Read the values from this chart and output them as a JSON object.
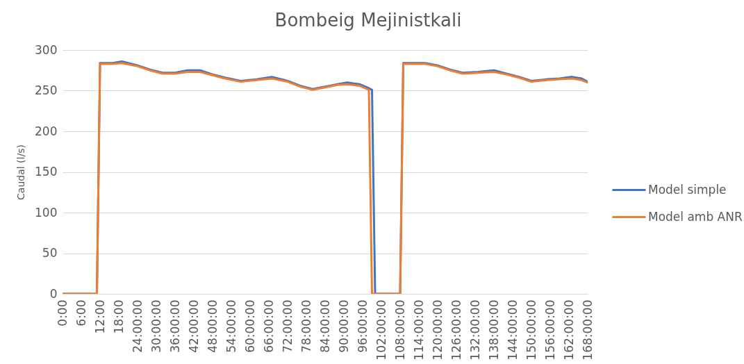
{
  "chart_data": {
    "type": "line",
    "title": "Bombeig Mejinistkali",
    "ylabel": "Caudal (l/s)",
    "xlim": [
      0,
      168
    ],
    "xticks": [
      {
        "value": 0,
        "label": "0:00"
      },
      {
        "value": 6,
        "label": "6:00"
      },
      {
        "value": 12,
        "label": "12:00"
      },
      {
        "value": 18,
        "label": "18:00"
      },
      {
        "value": 24,
        "label": "24:00:00"
      },
      {
        "value": 30,
        "label": "30:00:00"
      },
      {
        "value": 36,
        "label": "36:00:00"
      },
      {
        "value": 42,
        "label": "42:00:00"
      },
      {
        "value": 48,
        "label": "48:00:00"
      },
      {
        "value": 54,
        "label": "54:00:00"
      },
      {
        "value": 60,
        "label": "60:00:00"
      },
      {
        "value": 66,
        "label": "66:00:00"
      },
      {
        "value": 72,
        "label": "72:00:00"
      },
      {
        "value": 78,
        "label": "78:00:00"
      },
      {
        "value": 84,
        "label": "84:00:00"
      },
      {
        "value": 90,
        "label": "90:00:00"
      },
      {
        "value": 96,
        "label": "96:00:00"
      },
      {
        "value": 102,
        "label": "102:00:00"
      },
      {
        "value": 108,
        "label": "108:00:00"
      },
      {
        "value": 114,
        "label": "114:00:00"
      },
      {
        "value": 120,
        "label": "120:00:00"
      },
      {
        "value": 126,
        "label": "126:00:00"
      },
      {
        "value": 132,
        "label": "132:00:00"
      },
      {
        "value": 138,
        "label": "138:00:00"
      },
      {
        "value": 144,
        "label": "144:00:00"
      },
      {
        "value": 150,
        "label": "150:00:00"
      },
      {
        "value": 156,
        "label": "156:00:00"
      },
      {
        "value": 162,
        "label": "162:00:00"
      },
      {
        "value": 168,
        "label": "168:00:00"
      }
    ],
    "ylim": [
      0,
      300
    ],
    "yticks": [
      0,
      50,
      100,
      150,
      200,
      250,
      300
    ],
    "grid": "y",
    "legend": "right",
    "series": [
      {
        "name": "Model simple",
        "color": "#4472c4",
        "x": [
          0,
          11,
          12,
          16,
          19,
          24,
          28,
          32,
          36,
          40,
          44,
          48,
          52,
          57,
          62,
          67,
          72,
          76,
          80,
          84,
          88,
          91,
          95,
          98,
          99,
          100,
          108,
          109,
          116,
          120,
          124,
          128,
          133,
          138,
          142,
          146,
          150,
          155,
          159,
          163,
          166,
          168
        ],
        "values": [
          0,
          0,
          284,
          284,
          286,
          281,
          276,
          272,
          272,
          275,
          275,
          270,
          266,
          262,
          264,
          267,
          262,
          256,
          252,
          255,
          258,
          260,
          258,
          253,
          251,
          0,
          0,
          284,
          284,
          281,
          276,
          272,
          273,
          275,
          271,
          267,
          262,
          264,
          265,
          267,
          265,
          261
        ]
      },
      {
        "name": "Model amb ANR",
        "color": "#ed7d31",
        "x": [
          0,
          11,
          12,
          16,
          19,
          24,
          28,
          32,
          36,
          40,
          44,
          48,
          52,
          57,
          62,
          67,
          72,
          76,
          80,
          84,
          88,
          91,
          95,
          98,
          99,
          108,
          109,
          116,
          120,
          124,
          128,
          133,
          138,
          142,
          146,
          150,
          155,
          159,
          163,
          166,
          168
        ],
        "values": [
          0,
          0,
          283,
          283,
          284,
          280,
          275,
          271,
          271,
          273,
          273,
          269,
          265,
          261,
          263,
          265,
          261,
          255,
          251,
          254,
          257,
          258,
          256,
          251,
          0,
          0,
          283,
          283,
          280,
          275,
          271,
          272,
          273,
          270,
          266,
          261,
          263,
          264,
          265,
          263,
          260
        ]
      }
    ]
  }
}
